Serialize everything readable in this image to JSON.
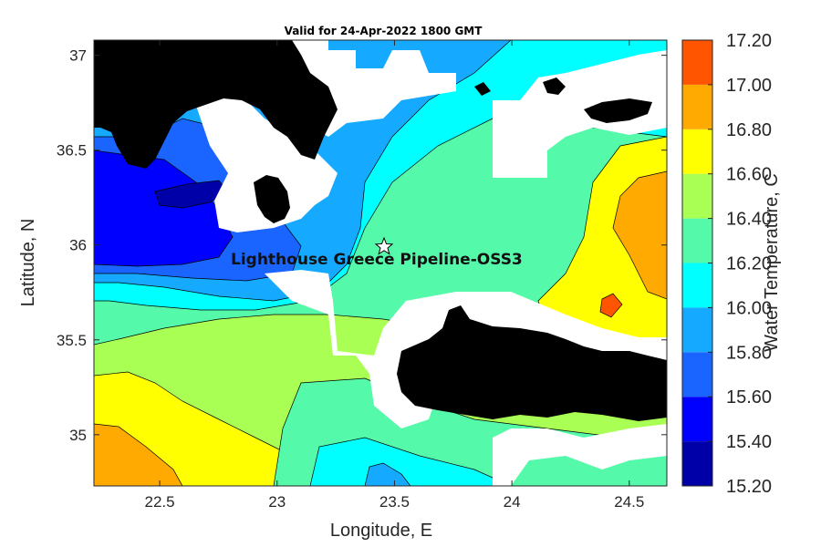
{
  "chart_data": {
    "type": "heatmap",
    "title": "Valid for 24-Apr-2022 1800 GMT",
    "xlabel": "Longitude, E",
    "ylabel": "Latitude, N",
    "colorbar_label": "Water Temperature, C",
    "xlim": [
      22.22,
      24.66
    ],
    "ylim": [
      34.73,
      37.08
    ],
    "x_ticks": [
      22.5,
      23,
      23.5,
      24,
      24.5
    ],
    "x_tick_labels": [
      "22.5",
      "23",
      "23.5",
      "24",
      "24.5"
    ],
    "y_ticks": [
      35,
      35.5,
      36,
      36.5,
      37
    ],
    "y_tick_labels": [
      "35",
      "35.5",
      "36",
      "36.5",
      "37"
    ],
    "colorbar_levels": [
      15.2,
      15.4,
      15.6,
      15.8,
      16.0,
      16.2,
      16.4,
      16.6,
      16.8,
      17.0,
      17.2
    ],
    "colorbar_tick_labels": [
      "15.20",
      "15.40",
      "15.60",
      "15.80",
      "16.00",
      "16.20",
      "16.40",
      "16.60",
      "16.80",
      "17.00",
      "17.20"
    ],
    "colorbar_colors": [
      "#0000a8",
      "#0000ff",
      "#1a64ff",
      "#15aaff",
      "#00ffff",
      "#55f9aa",
      "#aaff55",
      "#ffff00",
      "#ffaa00",
      "#ff5500"
    ],
    "land_color": "#000000",
    "no_data_color": "#ffffff",
    "marker": {
      "symbol": "star",
      "lon": 23.45,
      "lat": 36.0
    },
    "annotation": {
      "text": "Lighthouse Greece Pipeline-OSS3",
      "lon": 23.45,
      "lat": 35.93
    },
    "grid": false
  }
}
